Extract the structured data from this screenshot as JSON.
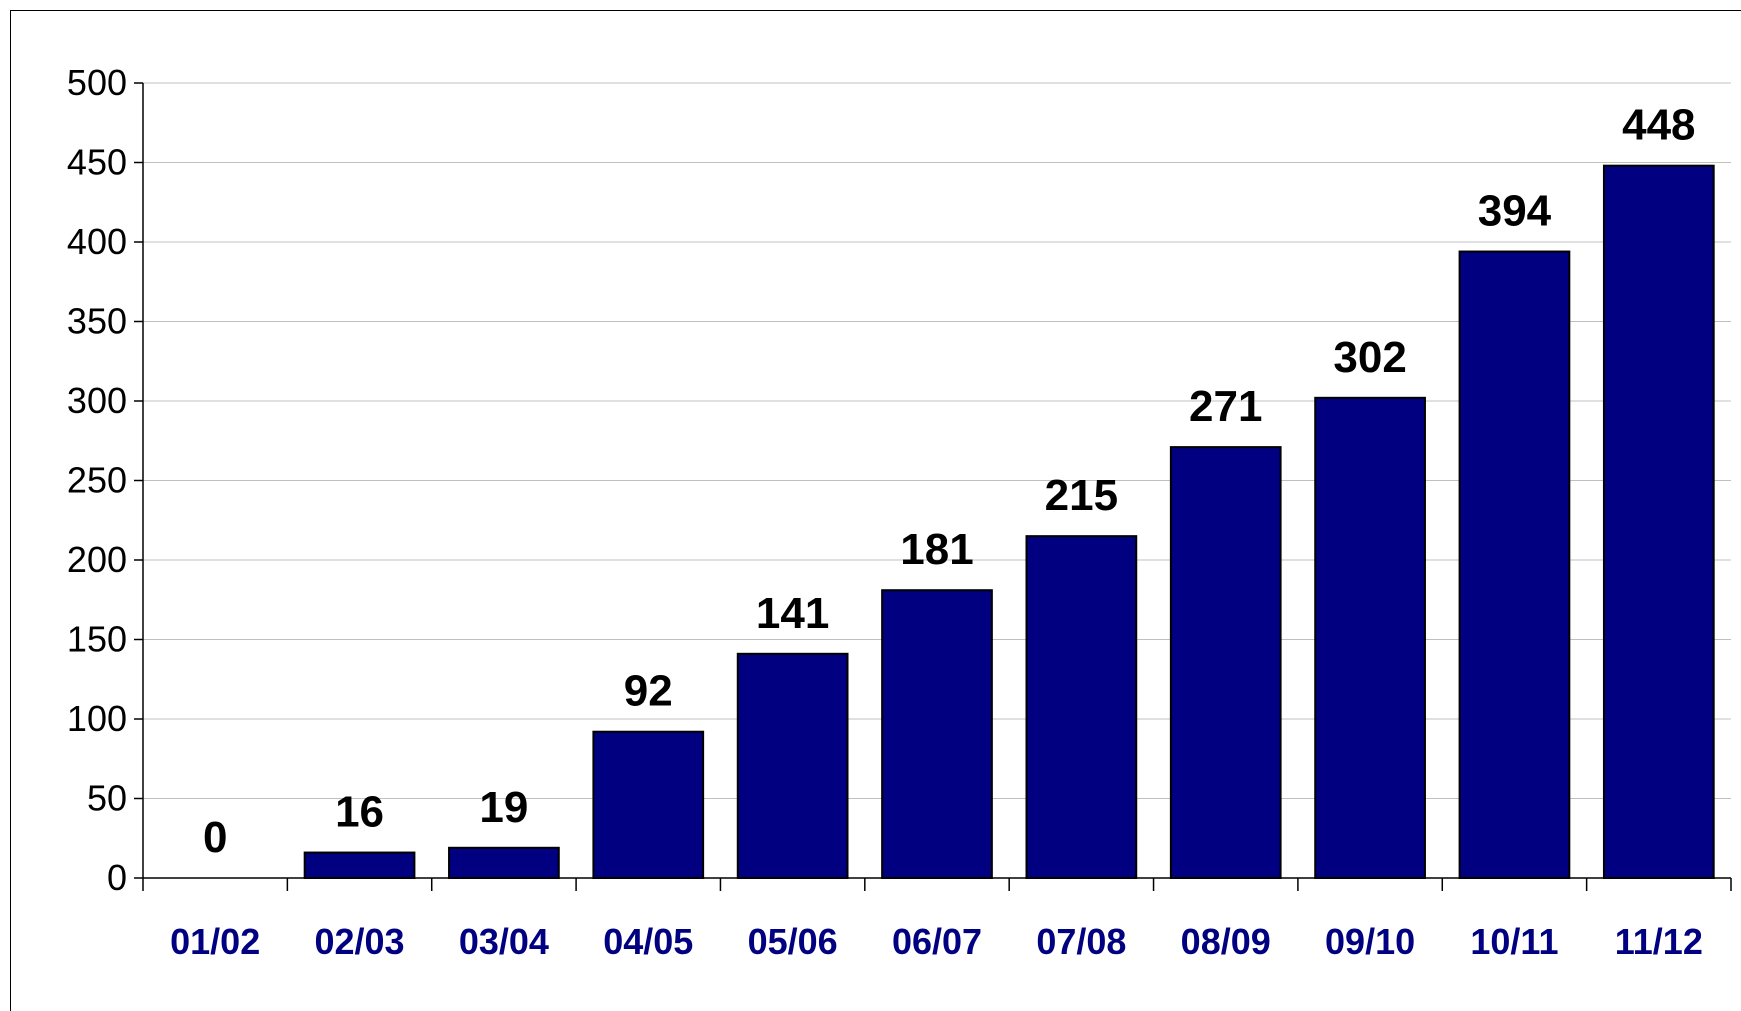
{
  "chart_data": {
    "type": "bar",
    "title": "",
    "xlabel": "",
    "ylabel": "",
    "categories": [
      "01/02",
      "02/03",
      "03/04",
      "04/05",
      "05/06",
      "06/07",
      "07/08",
      "08/09",
      "09/10",
      "10/11",
      "11/12"
    ],
    "values": [
      0,
      16,
      19,
      92,
      141,
      181,
      215,
      271,
      302,
      394,
      448
    ],
    "data_labels": [
      "0",
      "16",
      "19",
      "92",
      "141",
      "181",
      "215",
      "271",
      "302",
      "394",
      "448"
    ],
    "ylim": [
      0,
      500
    ],
    "y_ticks": [
      0,
      50,
      100,
      150,
      200,
      250,
      300,
      350,
      400,
      450,
      500
    ],
    "grid": true,
    "legend": "none",
    "colors": {
      "bar_fill": "#000080",
      "bar_stroke": "#000000",
      "x_tick_label": "#000080",
      "gridline": "#c0c0c0"
    }
  }
}
